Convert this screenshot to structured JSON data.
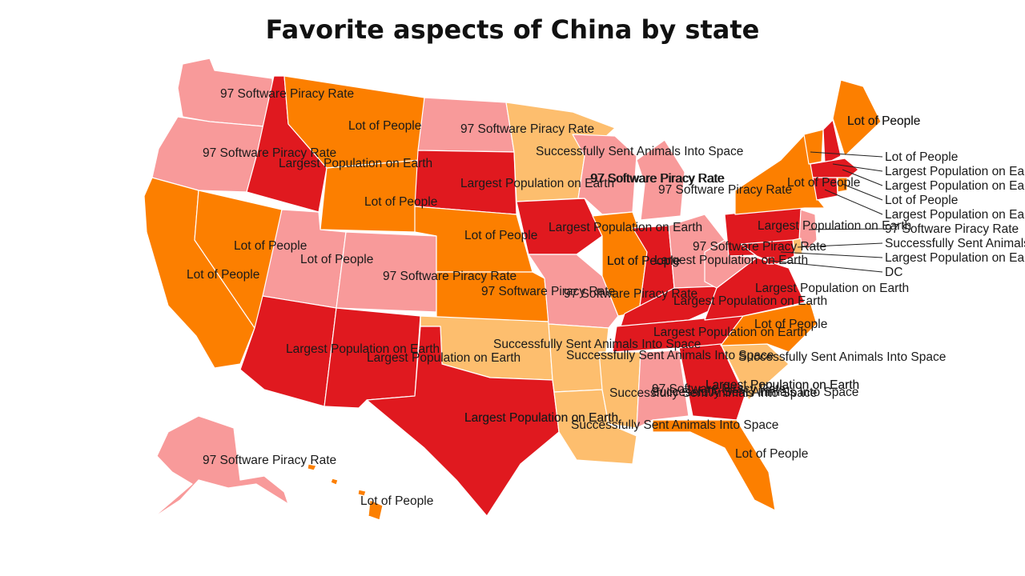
{
  "title": "Favorite aspects of China by state",
  "legend_colors": {
    "97 Software Piracy Rate": "#f89a9a",
    "Lot of People": "#fc7f00",
    "Largest Population on Earth": "#e0191f",
    "Successfully Sent Animals Into Space": "#fdbe6e"
  },
  "states": [
    {
      "id": "WA",
      "category": "97 Software Piracy Rate",
      "label": "97 Software Piracy Rate"
    },
    {
      "id": "OR",
      "category": "97 Software Piracy Rate",
      "label": "97 Software Piracy Rate"
    },
    {
      "id": "CA",
      "category": "Lot of People",
      "label": "Lot of People"
    },
    {
      "id": "NV",
      "category": "Lot of People",
      "label": "Lot of People"
    },
    {
      "id": "ID",
      "category": "Largest Population on Earth",
      "label": "Largest Population on Earth"
    },
    {
      "id": "MT",
      "category": "Lot of People",
      "label": "Lot of People"
    },
    {
      "id": "WY",
      "category": "Lot of People",
      "label": "Lot of People"
    },
    {
      "id": "UT",
      "category": "97 Software Piracy Rate",
      "label": "Lot of People"
    },
    {
      "id": "CO",
      "category": "97 Software Piracy Rate",
      "label": "97 Software Piracy Rate"
    },
    {
      "id": "AZ",
      "category": "Largest Population on Earth",
      "label": "Largest Population on Earth"
    },
    {
      "id": "NM",
      "category": "Largest Population on Earth",
      "label": "Largest Population on Earth"
    },
    {
      "id": "ND",
      "category": "97 Software Piracy Rate",
      "label": "97 Software Piracy Rate"
    },
    {
      "id": "SD",
      "category": "Largest Population on Earth",
      "label": "Largest Population on Earth"
    },
    {
      "id": "NE",
      "category": "Lot of People",
      "label": "Lot of People"
    },
    {
      "id": "KS",
      "category": "Lot of People",
      "label": "97 Software Piracy Rate"
    },
    {
      "id": "OK",
      "category": "Successfully Sent Animals Into Space",
      "label": "Largest Population on Earth"
    },
    {
      "id": "TX",
      "category": "Largest Population on Earth",
      "label": "Largest Population on Earth"
    },
    {
      "id": "MN",
      "category": "Successfully Sent Animals Into Space",
      "label": "Successfully Sent Animals Into Space"
    },
    {
      "id": "IA",
      "category": "Largest Population on Earth",
      "label": "Largest Population on Earth"
    },
    {
      "id": "MO",
      "category": "97 Software Piracy Rate",
      "label": "Lot of People"
    },
    {
      "id": "AR",
      "category": "Successfully Sent Animals Into Space",
      "label": "Successfully Sent Animals Into Space"
    },
    {
      "id": "LA",
      "category": "Successfully Sent Animals Into Space",
      "label": "Largest Population on Earth"
    },
    {
      "id": "WI",
      "category": "97 Software Piracy Rate",
      "label": "97 Software Piracy Rate"
    },
    {
      "id": "IL",
      "category": "Lot of People",
      "label": "Lot of People"
    },
    {
      "id": "MI",
      "category": "97 Software Piracy Rate",
      "label": "97 Software Piracy Rate"
    },
    {
      "id": "IN",
      "category": "Largest Population on Earth",
      "label": "Largest Population on Earth"
    },
    {
      "id": "OH",
      "category": "97 Software Piracy Rate",
      "label": "97 Software Piracy Rate"
    },
    {
      "id": "KY",
      "category": "Largest Population on Earth",
      "label": "97 Software Piracy Rate"
    },
    {
      "id": "TN",
      "category": "Largest Population on Earth",
      "label": "Successfully Sent Animals Into Space"
    },
    {
      "id": "MS",
      "category": "Successfully Sent Animals Into Space",
      "label": "Successfully Sent Animals Into Space"
    },
    {
      "id": "AL",
      "category": "97 Software Piracy Rate",
      "label": "97 Software Piracy Rate"
    },
    {
      "id": "GA",
      "category": "Largest Population on Earth",
      "label": "Largest Population on Earth"
    },
    {
      "id": "FL",
      "category": "Lot of People",
      "label": "Lot of People"
    },
    {
      "id": "SC",
      "category": "Successfully Sent Animals Into Space",
      "label": "Successfully Sent Animals Into Space"
    },
    {
      "id": "NC",
      "category": "Lot of People",
      "label": "Lot of People"
    },
    {
      "id": "VA",
      "category": "Largest Population on Earth",
      "label": "Largest Population on Earth"
    },
    {
      "id": "WV",
      "category": "97 Software Piracy Rate",
      "label": "Largest Population on Earth"
    },
    {
      "id": "PA",
      "category": "Largest Population on Earth",
      "label": "Largest Population on Earth"
    },
    {
      "id": "NY",
      "category": "Lot of People",
      "label": "Lot of People"
    },
    {
      "id": "ME",
      "category": "Lot of People",
      "label": "Lot of People"
    },
    {
      "id": "AK",
      "category": "97 Software Piracy Rate",
      "label": "97 Software Piracy Rate"
    },
    {
      "id": "HI",
      "category": "Lot of People",
      "label": "Lot of People"
    },
    {
      "id": "VT",
      "category": "Lot of People",
      "label": "Lot of People"
    },
    {
      "id": "NH",
      "category": "Largest Population on Earth",
      "label": "Largest Population on Earth"
    },
    {
      "id": "MA",
      "category": "Largest Population on Earth",
      "label": "Largest Population on Earth"
    },
    {
      "id": "RI",
      "category": "Lot of People",
      "label": "Lot of People"
    },
    {
      "id": "CT",
      "category": "Largest Population on Earth",
      "label": "Largest Population on Earth"
    },
    {
      "id": "NJ",
      "category": "97 Software Piracy Rate",
      "label": "97 Software Piracy Rate"
    },
    {
      "id": "DE",
      "category": "Successfully Sent Animals Into Space",
      "label": "Successfully Sent Animals Into Space"
    },
    {
      "id": "MD",
      "category": "Largest Population on Earth",
      "label": "Largest Population on Earth"
    },
    {
      "id": "DC",
      "category": "Largest Population on Earth",
      "label": "DC"
    }
  ],
  "overlap_labels": [
    "Successfully Sent Animals Into Space",
    "Successfully Sent Animals Into Space",
    "Largest Population on Earth",
    "Lot of People",
    "97 Software Piracy Rate"
  ]
}
